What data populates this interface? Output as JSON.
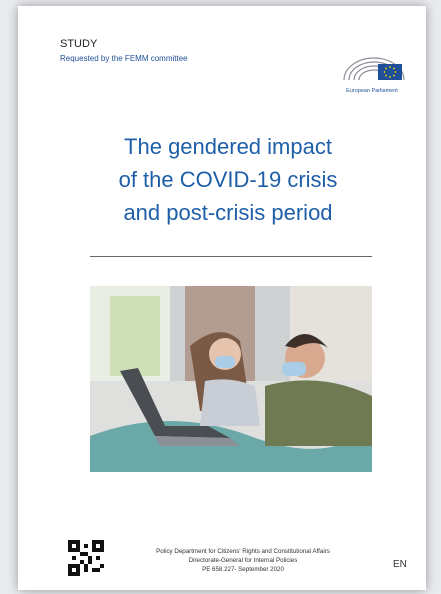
{
  "header": {
    "label": "STUDY",
    "subtitle": "Requested by the FEMM committee",
    "logo_text": "European Parliament"
  },
  "title": {
    "lines": [
      "The gendered impact",
      "of the COVID-19 crisis",
      "and post-crisis period"
    ]
  },
  "footer": {
    "lines": [
      "Policy Department for Citizens' Rights and Constitutional Affairs",
      "Directorate-General for Internal Policies",
      "PE 658.227- September 2020"
    ],
    "language": "EN"
  }
}
